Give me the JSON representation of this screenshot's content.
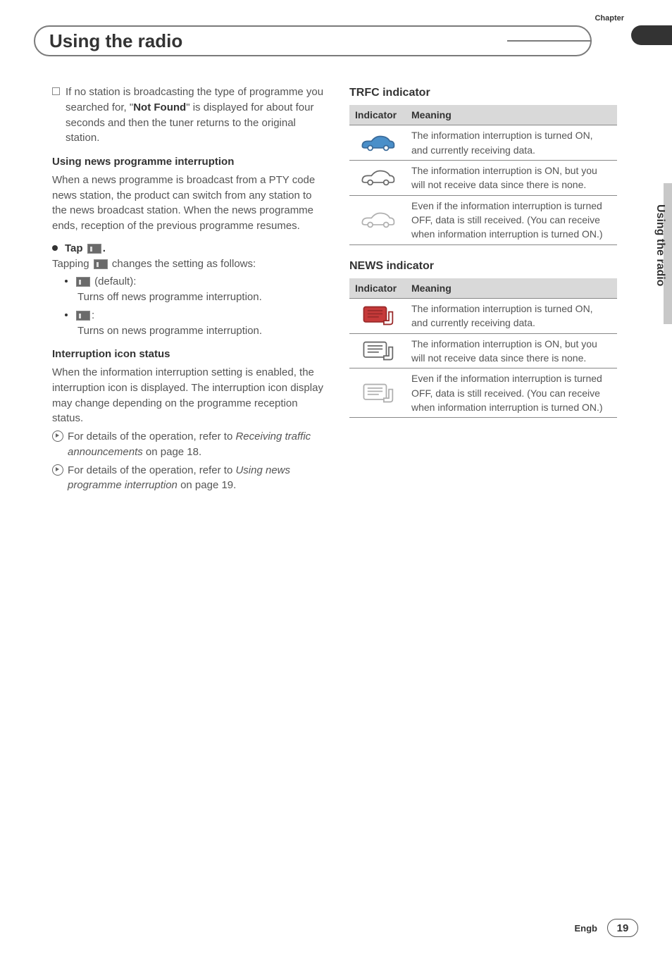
{
  "header": {
    "chapter_label": "Chapter",
    "title": "Using the radio"
  },
  "side": {
    "vertical_label": "Using the radio"
  },
  "left_col": {
    "not_found_para_pre": "If no station is broadcasting the type of programme you searched for, \"",
    "not_found_bold": "Not Found",
    "not_found_para_post": "\" is displayed for about four seconds and then the tuner returns to the original station.",
    "h_news_interrupt": "Using news programme interruption",
    "news_para": "When a news programme is broadcast from a PTY code news station, the product can switch from any station to the news broadcast station. When the news programme ends, reception of the previous programme resumes.",
    "tap_label_pre": "Tap ",
    "tap_label_post": ".",
    "tapping_pre": "Tapping ",
    "tapping_post": " changes the setting as follows:",
    "default_label": " (default):",
    "turns_off": "Turns off news programme interruption.",
    "colon": ":",
    "turns_on": "Turns on news programme interruption.",
    "h_icon_status": "Interruption icon status",
    "icon_status_para": "When the information interruption setting is enabled, the interruption icon is displayed. The interruption icon display may change depending on the programme reception status.",
    "ref1_pre": "For details of the operation, refer to ",
    "ref1_italic": "Receiving traffic announcements",
    "ref1_post": " on page 18.",
    "ref2_pre": "For details of the operation, refer to ",
    "ref2_italic": "Using news programme interruption",
    "ref2_post": " on page 19."
  },
  "right_col": {
    "trfc_title": "TRFC indicator",
    "news_title": "NEWS indicator",
    "header_indicator": "Indicator",
    "header_meaning": "Meaning",
    "trfc_rows": [
      {
        "fill": "#4a8fc9",
        "outline": "#3a6a99",
        "meaning": "The information interruption is turned ON, and currently receiving data."
      },
      {
        "fill": "#ffffff",
        "outline": "#6a6a6a",
        "meaning": "The information interruption is ON, but you will not receive data since there is none."
      },
      {
        "fill": "#ffffff",
        "outline": "#b0b0b0",
        "meaning": "Even if the information interruption is turned OFF, data is still received. (You can receive when information interruption is turned ON.)"
      }
    ],
    "news_rows": [
      {
        "fill": "#c63a3a",
        "outline": "#9a2a2a",
        "meaning": "The information interruption is turned ON, and currently receiving data."
      },
      {
        "fill": "#ffffff",
        "outline": "#6a6a6a",
        "meaning": "The information interruption is ON, but you will not receive data since there is none."
      },
      {
        "fill": "#ffffff",
        "outline": "#b0b0b0",
        "meaning": "Even if the information interruption is turned OFF, data is still received. (You can receive when information interruption is turned ON.)"
      }
    ]
  },
  "footer": {
    "lang": "Engb",
    "page": "19"
  }
}
